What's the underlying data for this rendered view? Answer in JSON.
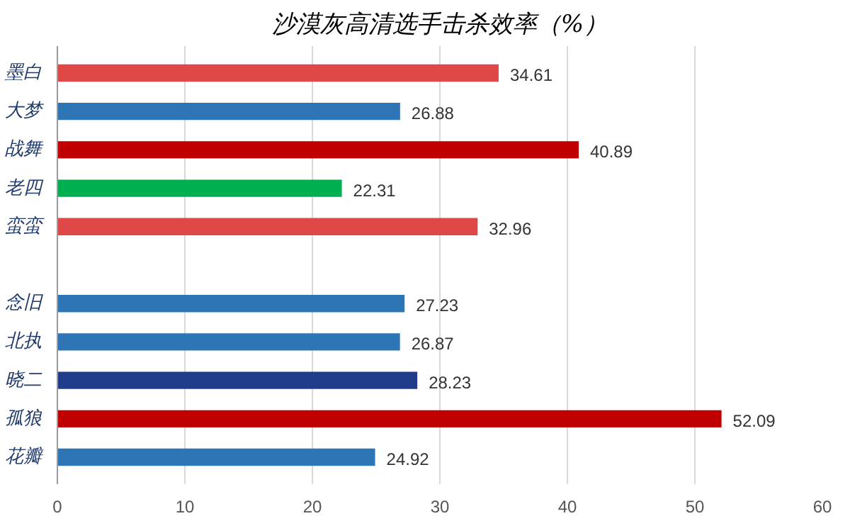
{
  "chart_data": {
    "type": "bar",
    "orientation": "horizontal",
    "title": "沙漠灰高清选手击杀效率（%）",
    "categories": [
      "墨白",
      "大梦",
      "战舞",
      "老四",
      "蛮蛮",
      null,
      "念旧",
      "北执",
      "晓二",
      "孤狼",
      "花瓣"
    ],
    "values": [
      34.61,
      26.88,
      40.89,
      22.31,
      32.96,
      null,
      27.23,
      26.87,
      28.23,
      52.09,
      24.92
    ],
    "colors": [
      "#e04848",
      "#2e75b6",
      "#c00000",
      "#00b050",
      "#e04848",
      "#ffffff",
      "#2e75b6",
      "#2e75b6",
      "#1f3b8a",
      "#c00000",
      "#2e75b6"
    ],
    "xlim": [
      0,
      60
    ],
    "xticks": [
      0,
      10,
      20,
      30,
      40,
      50,
      60
    ],
    "grid": "x",
    "data_labels": true
  }
}
